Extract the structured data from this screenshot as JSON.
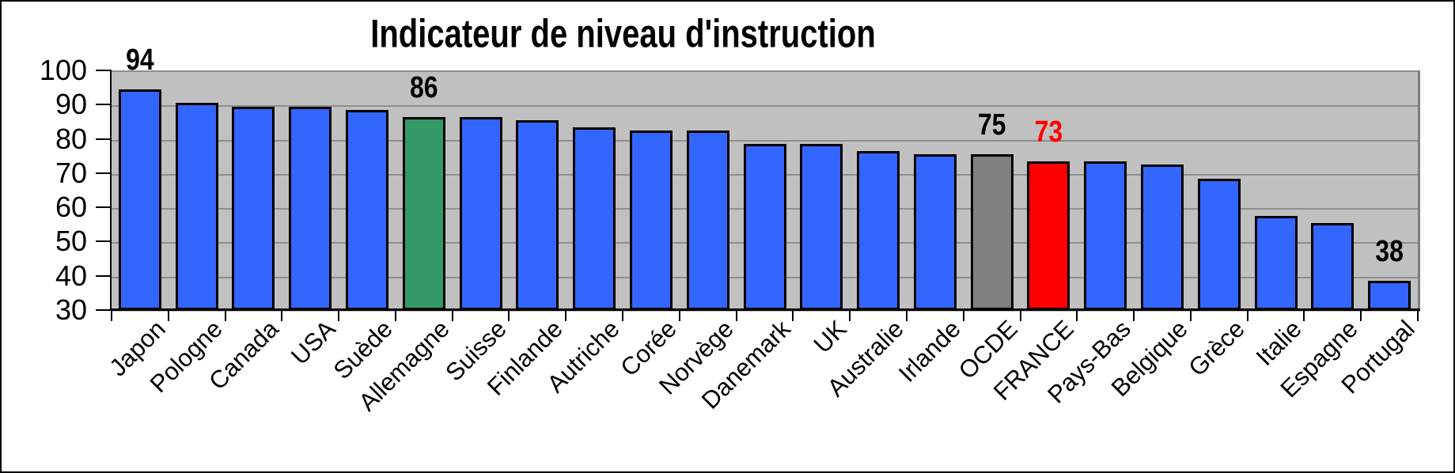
{
  "title": "Indicateur de niveau d'instruction",
  "chart_data": {
    "type": "bar",
    "title": "Indicateur de niveau d'instruction",
    "categories": [
      "Japon",
      "Pologne",
      "Canada",
      "USA",
      "Suède",
      "Allemagne",
      "Suisse",
      "Finlande",
      "Autriche",
      "Corée",
      "Norvège",
      "Danemark",
      "UK",
      "Australie",
      "Irlande",
      "OCDE",
      "FRANCE",
      "Pays-Bas",
      "Belgique",
      "Grèce",
      "Italie",
      "Espagne",
      "Portugal"
    ],
    "values": [
      94,
      90,
      89,
      89,
      88,
      86,
      86,
      85,
      83,
      82,
      82,
      78,
      78,
      76,
      75,
      75,
      73,
      73,
      72,
      68,
      57,
      55,
      38
    ],
    "bar_colors": {
      "default": "#3366FF",
      "Allemagne": "#339966",
      "OCDE": "#808080",
      "FRANCE": "#FF0000"
    },
    "value_labels": [
      {
        "category": "Japon",
        "text": "94",
        "color": "#000000"
      },
      {
        "category": "Allemagne",
        "text": "86",
        "color": "#000000"
      },
      {
        "category": "OCDE",
        "text": "75",
        "color": "#000000"
      },
      {
        "category": "FRANCE",
        "text": "73",
        "color": "#FF0000"
      },
      {
        "category": "Portugal",
        "text": "38",
        "color": "#000000"
      }
    ],
    "xlabel": "",
    "ylabel": "",
    "ylim": [
      30,
      100
    ],
    "y_ticks": [
      30,
      40,
      50,
      60,
      70,
      80,
      90,
      100
    ],
    "grid": true,
    "legend": false,
    "plot_bg": "#C0C0C0",
    "gridline_color": "#8e8e8e",
    "axis_color": "#000000",
    "outer_bg": "#FFFFFF",
    "frame_color": "#000000"
  }
}
